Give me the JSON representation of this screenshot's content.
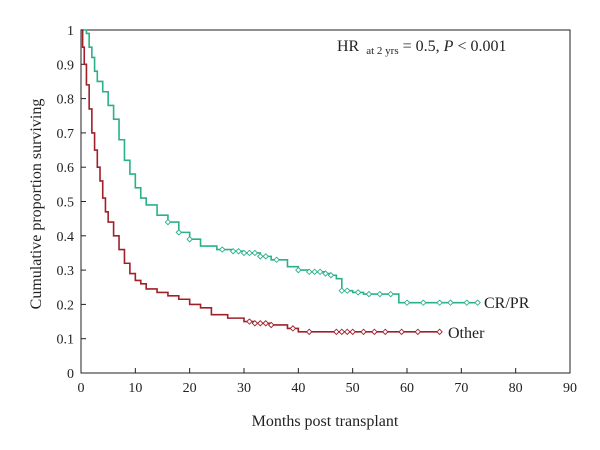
{
  "chart_data": {
    "type": "line",
    "xlabel": "Months post transplant",
    "ylabel": "Cumulative proportion surviving",
    "xlim": [
      0,
      90
    ],
    "ylim": [
      0,
      1
    ],
    "xticks": [
      "0",
      "10",
      "20",
      "30",
      "40",
      "50",
      "60",
      "70",
      "80",
      "90"
    ],
    "yticks": [
      "0",
      "0.1",
      "0.2",
      "0.3",
      "0.4",
      "0.5",
      "0.6",
      "0.7",
      "0.8",
      "0.9",
      "1"
    ],
    "grid": false,
    "annotation": {
      "hr_text": "HR",
      "hr_sub": "at 2 yrs",
      "eq_text": " = 0.5, ",
      "p_text": "P",
      "p_rest": " < 0.001"
    },
    "series": [
      {
        "name": "CR/PR",
        "color": "#2bb08a",
        "points": [
          [
            0,
            1
          ],
          [
            1,
            0.99
          ],
          [
            1.5,
            0.95
          ],
          [
            2,
            0.92
          ],
          [
            2.5,
            0.88
          ],
          [
            3,
            0.85
          ],
          [
            4,
            0.82
          ],
          [
            5,
            0.78
          ],
          [
            6,
            0.74
          ],
          [
            7,
            0.68
          ],
          [
            8,
            0.62
          ],
          [
            9,
            0.58
          ],
          [
            10,
            0.54
          ],
          [
            11,
            0.51
          ],
          [
            12,
            0.49
          ],
          [
            14,
            0.46
          ],
          [
            16,
            0.44
          ],
          [
            18,
            0.41
          ],
          [
            20,
            0.39
          ],
          [
            22,
            0.37
          ],
          [
            25,
            0.36
          ],
          [
            28,
            0.355
          ],
          [
            30,
            0.35
          ],
          [
            33,
            0.34
          ],
          [
            35,
            0.33
          ],
          [
            38,
            0.31
          ],
          [
            40,
            0.3
          ],
          [
            42,
            0.295
          ],
          [
            45,
            0.29
          ],
          [
            46,
            0.285
          ],
          [
            47,
            0.275
          ],
          [
            48,
            0.24
          ],
          [
            50,
            0.235
          ],
          [
            52,
            0.23
          ],
          [
            55,
            0.23
          ],
          [
            58,
            0.23
          ],
          [
            58.5,
            0.205
          ],
          [
            60,
            0.205
          ],
          [
            65,
            0.205
          ],
          [
            70,
            0.205
          ],
          [
            73,
            0.205
          ]
        ],
        "censor_x": [
          16,
          18,
          20,
          26,
          28,
          29,
          30,
          31,
          32,
          33,
          34,
          36,
          40,
          42,
          43,
          44,
          45,
          46,
          48,
          49,
          51,
          53,
          55,
          57,
          60,
          63,
          66,
          68,
          71,
          73
        ]
      },
      {
        "name": "Other",
        "color": "#a02029",
        "points": [
          [
            0,
            1
          ],
          [
            0.3,
            0.95
          ],
          [
            0.6,
            0.9
          ],
          [
            1,
            0.84
          ],
          [
            1.5,
            0.77
          ],
          [
            2,
            0.7
          ],
          [
            2.5,
            0.65
          ],
          [
            3,
            0.6
          ],
          [
            3.5,
            0.56
          ],
          [
            4,
            0.51
          ],
          [
            4.5,
            0.47
          ],
          [
            5,
            0.44
          ],
          [
            6,
            0.4
          ],
          [
            7,
            0.36
          ],
          [
            8,
            0.32
          ],
          [
            9,
            0.29
          ],
          [
            10,
            0.27
          ],
          [
            11,
            0.26
          ],
          [
            12,
            0.245
          ],
          [
            14,
            0.235
          ],
          [
            16,
            0.225
          ],
          [
            18,
            0.215
          ],
          [
            20,
            0.2
          ],
          [
            22,
            0.19
          ],
          [
            24,
            0.17
          ],
          [
            27,
            0.16
          ],
          [
            30,
            0.15
          ],
          [
            32,
            0.145
          ],
          [
            35,
            0.14
          ],
          [
            38,
            0.13
          ],
          [
            40,
            0.12
          ],
          [
            45,
            0.12
          ],
          [
            50,
            0.12
          ],
          [
            55,
            0.12
          ],
          [
            60,
            0.12
          ],
          [
            66,
            0.12
          ]
        ],
        "censor_x": [
          31,
          32,
          33,
          34,
          35,
          39,
          42,
          47,
          48,
          49,
          50,
          52,
          54,
          56,
          59,
          62,
          66
        ]
      }
    ]
  }
}
